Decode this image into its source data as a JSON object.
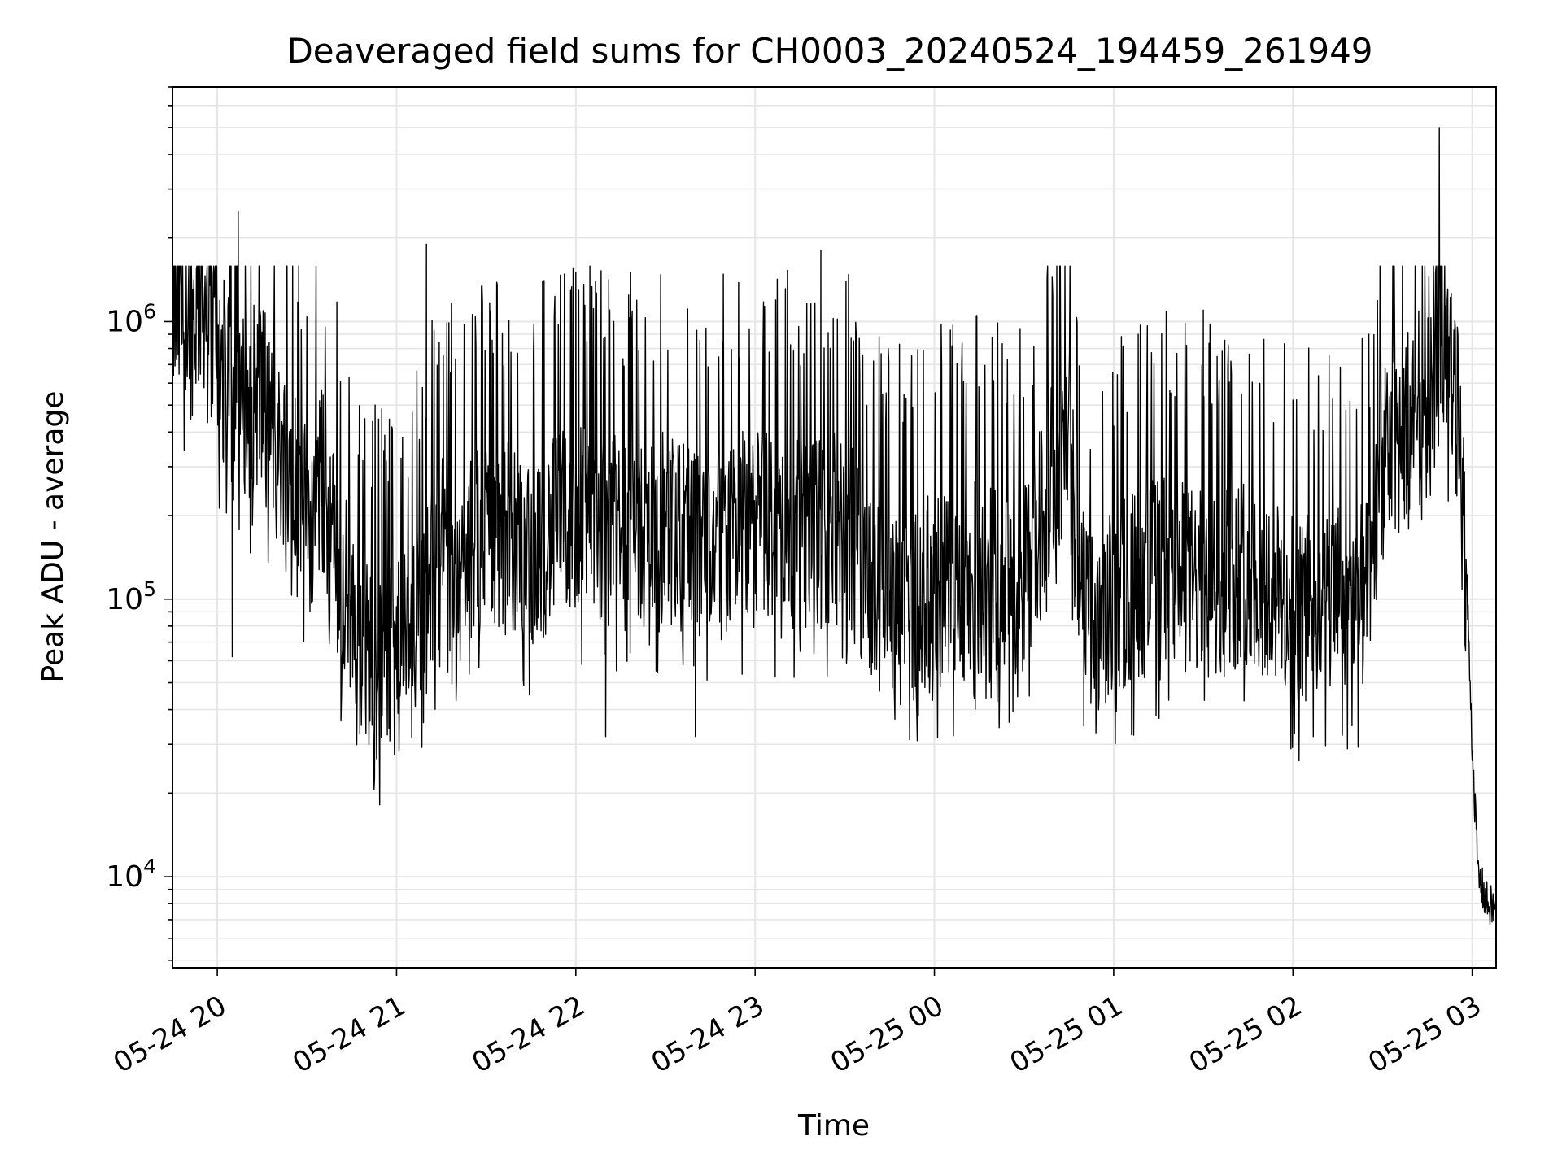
{
  "chart_data": {
    "type": "line",
    "title": "Deaveraged field sums for CH0003_20240524_194459_261949",
    "xlabel": "Time",
    "ylabel": "Peak ADU - average",
    "yscale": "log",
    "ylim": [
      4700,
      7000000
    ],
    "xlim": [
      "2024-05-24 19:45:00",
      "2024-05-25 03:08:00"
    ],
    "grid": true,
    "legend": "none",
    "line_color": "#000000",
    "grid_color": "#e6e6e6",
    "x_ticks": [
      {
        "value": "2024-05-24 20:00",
        "label": "05-24 20"
      },
      {
        "value": "2024-05-24 21:00",
        "label": "05-24 21"
      },
      {
        "value": "2024-05-24 22:00",
        "label": "05-24 22"
      },
      {
        "value": "2024-05-24 23:00",
        "label": "05-24 23"
      },
      {
        "value": "2024-05-25 00:00",
        "label": "05-25 00"
      },
      {
        "value": "2024-05-25 01:00",
        "label": "05-25 01"
      },
      {
        "value": "2024-05-25 02:00",
        "label": "05-25 02"
      },
      {
        "value": "2024-05-25 03:00",
        "label": "05-25 03"
      }
    ],
    "y_ticks": [
      {
        "value": 10000,
        "base": "10",
        "exp": "4"
      },
      {
        "value": 100000,
        "base": "10",
        "exp": "5"
      },
      {
        "value": 1000000,
        "base": "10",
        "exp": "6"
      }
    ],
    "series": [
      {
        "values": [
          [
            "2024-05-24 19:45",
            1100000
          ],
          [
            "2024-05-24 19:50",
            900000
          ],
          [
            "2024-05-24 19:55",
            1300000
          ],
          [
            "2024-05-24 20:00",
            800000
          ],
          [
            "2024-05-24 20:05",
            500000
          ],
          [
            "2024-05-24 20:10",
            480000
          ],
          [
            "2024-05-24 20:15",
            600000
          ],
          [
            "2024-05-24 20:20",
            330000
          ],
          [
            "2024-05-24 20:25",
            350000
          ],
          [
            "2024-05-24 20:30",
            180000
          ],
          [
            "2024-05-24 20:35",
            270000
          ],
          [
            "2024-05-24 20:40",
            140000
          ],
          [
            "2024-05-24 20:45",
            90000
          ],
          [
            "2024-05-24 20:50",
            65000
          ],
          [
            "2024-05-24 20:55",
            55000
          ],
          [
            "2024-05-24 21:00",
            60000
          ],
          [
            "2024-05-24 21:05",
            70000
          ],
          [
            "2024-05-24 21:10",
            100000
          ],
          [
            "2024-05-24 21:15",
            160000
          ],
          [
            "2024-05-24 21:20",
            120000
          ],
          [
            "2024-05-24 21:30",
            180000
          ],
          [
            "2024-05-24 21:45",
            150000
          ],
          [
            "2024-05-24 22:00",
            200000
          ],
          [
            "2024-05-24 22:15",
            170000
          ],
          [
            "2024-05-24 22:30",
            180000
          ],
          [
            "2024-05-24 22:45",
            160000
          ],
          [
            "2024-05-24 23:00",
            190000
          ],
          [
            "2024-05-24 23:15",
            170000
          ],
          [
            "2024-05-24 23:30",
            180000
          ],
          [
            "2024-05-24 23:40",
            110000
          ],
          [
            "2024-05-24 23:50",
            90000
          ],
          [
            "2024-05-25 00:00",
            110000
          ],
          [
            "2024-05-25 00:15",
            120000
          ],
          [
            "2024-05-25 00:30",
            110000
          ],
          [
            "2024-05-25 00:40",
            300000
          ],
          [
            "2024-05-25 00:45",
            400000
          ],
          [
            "2024-05-25 00:50",
            90000
          ],
          [
            "2024-05-25 00:55",
            70000
          ],
          [
            "2024-05-25 01:00",
            100000
          ],
          [
            "2024-05-25 01:15",
            130000
          ],
          [
            "2024-05-25 01:30",
            110000
          ],
          [
            "2024-05-25 01:45",
            130000
          ],
          [
            "2024-05-25 02:00",
            90000
          ],
          [
            "2024-05-25 02:15",
            100000
          ],
          [
            "2024-05-25 02:25",
            100000
          ],
          [
            "2024-05-25 02:30",
            300000
          ],
          [
            "2024-05-25 02:40",
            450000
          ],
          [
            "2024-05-25 02:50",
            1000000
          ],
          [
            "2024-05-25 02:55",
            450000
          ],
          [
            "2024-05-25 02:58",
            130000
          ],
          [
            "2024-05-25 03:00",
            30000
          ],
          [
            "2024-05-25 03:02",
            10000
          ],
          [
            "2024-05-25 03:05",
            8000
          ],
          [
            "2024-05-25 03:08",
            7500
          ]
        ],
        "peaks": [
          [
            "2024-05-24 20:07",
            2500000
          ],
          [
            "2024-05-24 21:10",
            1900000
          ],
          [
            "2024-05-24 22:00",
            1500000
          ],
          [
            "2024-05-24 23:22",
            1800000
          ],
          [
            "2024-05-25 01:30",
            1100000
          ],
          [
            "2024-05-25 02:49",
            5000000
          ]
        ],
        "troughs": [
          [
            "2024-05-24 20:05",
            62000
          ],
          [
            "2024-05-24 20:55",
            36000
          ],
          [
            "2024-05-24 22:10",
            32000
          ],
          [
            "2024-05-24 22:40",
            32000
          ],
          [
            "2024-05-25 00:25",
            36000
          ],
          [
            "2024-05-25 00:50",
            35000
          ],
          [
            "2024-05-25 02:00",
            45000
          ]
        ]
      }
    ]
  }
}
